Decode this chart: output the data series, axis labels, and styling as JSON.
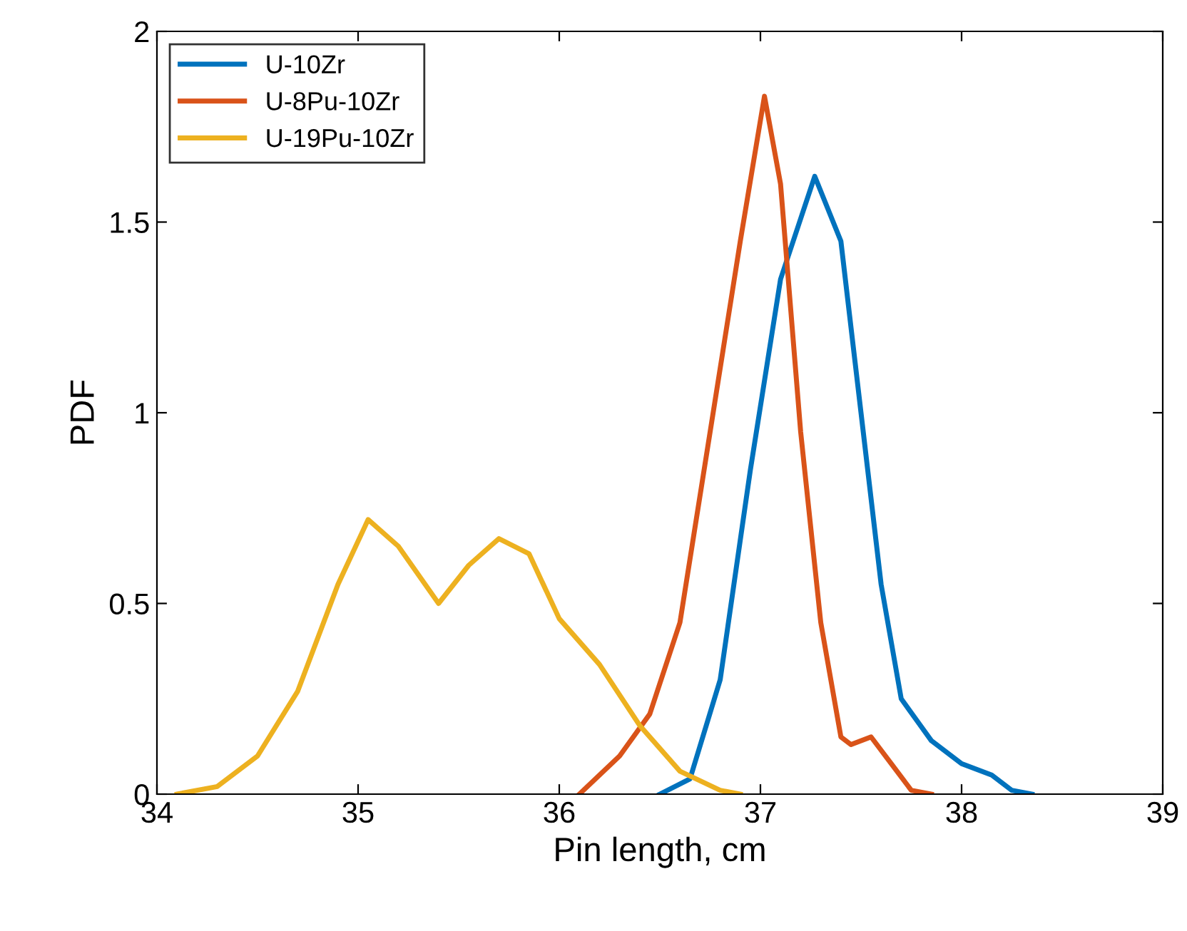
{
  "chart_data": {
    "type": "line",
    "xlabel": "Pin length, cm",
    "ylabel": "PDF",
    "xlim": [
      34,
      39
    ],
    "ylim": [
      0,
      2
    ],
    "xticks": [
      34,
      35,
      36,
      37,
      38,
      39
    ],
    "yticks": [
      0,
      0.5,
      1,
      1.5,
      2
    ],
    "grid": false,
    "legend": "top left",
    "marker": "none",
    "line_style": "solid",
    "series": [
      {
        "name": "U-10Zr",
        "color": "#0072bd",
        "x": [
          36.5,
          36.65,
          36.8,
          36.95,
          37.1,
          37.27,
          37.4,
          37.5,
          37.6,
          37.7,
          37.85,
          38.0,
          38.15,
          38.25,
          38.35
        ],
        "values": [
          0,
          0.04,
          0.3,
          0.85,
          1.35,
          1.62,
          1.45,
          1.0,
          0.55,
          0.25,
          0.14,
          0.08,
          0.05,
          0.01,
          0
        ]
      },
      {
        "name": "U-8Pu-10Zr",
        "color": "#d95319",
        "x": [
          36.1,
          36.3,
          36.45,
          36.6,
          36.75,
          36.9,
          37.02,
          37.1,
          37.2,
          37.3,
          37.4,
          37.45,
          37.55,
          37.65,
          37.75,
          37.85
        ],
        "values": [
          0,
          0.1,
          0.21,
          0.45,
          0.95,
          1.45,
          1.83,
          1.6,
          0.95,
          0.45,
          0.15,
          0.13,
          0.15,
          0.08,
          0.01,
          0
        ]
      },
      {
        "name": "U-19Pu-10Zr",
        "color": "#edb120",
        "x": [
          34.1,
          34.3,
          34.5,
          34.7,
          34.9,
          35.05,
          35.2,
          35.4,
          35.55,
          35.7,
          35.85,
          36.0,
          36.2,
          36.4,
          36.6,
          36.8,
          36.9
        ],
        "values": [
          0,
          0.02,
          0.1,
          0.27,
          0.55,
          0.72,
          0.65,
          0.5,
          0.6,
          0.67,
          0.63,
          0.46,
          0.34,
          0.18,
          0.06,
          0.01,
          0
        ]
      }
    ]
  }
}
